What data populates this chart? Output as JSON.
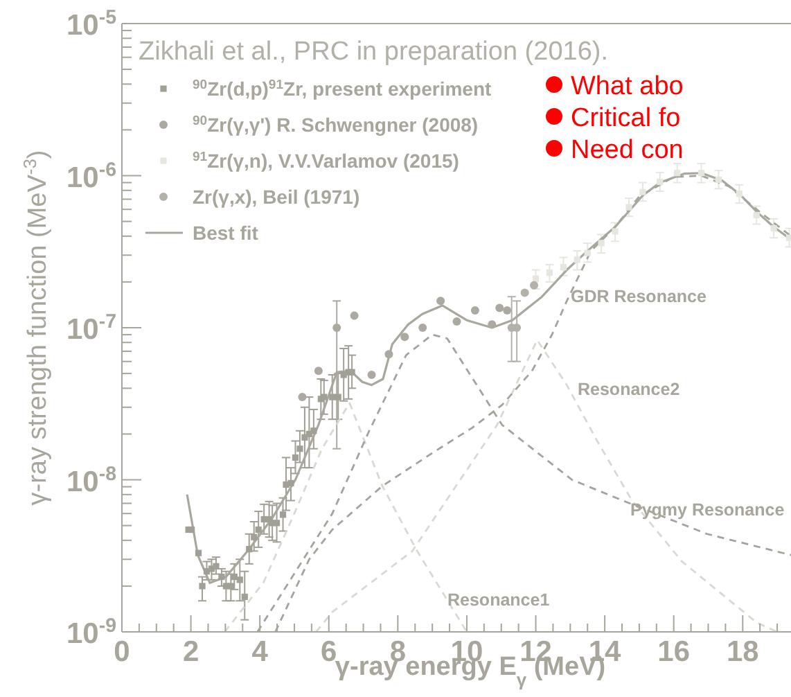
{
  "chart_data": {
    "type": "scatter",
    "xlabel": "γ-ray energy E$_{γ}$ (MeV)",
    "ylabel": "γ-ray strength function (MeV$^{-3}$)",
    "annotations": [
      "Zikhali et al., PRC in preparation (2016).",
      "What abo",
      "Critical fo",
      "Need con"
    ],
    "log": true,
    "legend": "top left",
    "xlim": [
      0,
      19.4
    ],
    "xticks": [
      0,
      {
        "value": 0.5,
        "label": null
      },
      {
        "value": 1,
        "label": null
      },
      {
        "value": 1.5,
        "label": null
      },
      2,
      {
        "value": 2.5,
        "label": null
      },
      {
        "value": 3,
        "label": null
      },
      {
        "value": 3.5,
        "label": null
      },
      4,
      {
        "value": 4.5,
        "label": null
      },
      {
        "value": 5,
        "label": null
      },
      {
        "value": 5.5,
        "label": null
      },
      6,
      {
        "value": 6.5,
        "label": null
      },
      {
        "value": 7,
        "label": null
      },
      {
        "value": 7.5,
        "label": null
      },
      8,
      {
        "value": 8.5,
        "label": null
      },
      {
        "value": 9,
        "label": null
      },
      {
        "value": 9.5,
        "label": null
      },
      10,
      {
        "value": 10.5,
        "label": null
      },
      {
        "value": 11,
        "label": null
      },
      {
        "value": 11.5,
        "label": null
      },
      12,
      {
        "value": 12.5,
        "label": null
      },
      {
        "value": 13,
        "label": null
      },
      {
        "value": 13.5,
        "label": null
      },
      14,
      {
        "value": 14.5,
        "label": null
      },
      {
        "value": 15,
        "label": null
      },
      {
        "value": 15.5,
        "label": null
      },
      16,
      {
        "value": 16.5,
        "label": null
      },
      {
        "value": 17,
        "label": null
      },
      {
        "value": 17.5,
        "label": null
      },
      18,
      {
        "value": 18.5,
        "label": null
      },
      {
        "value": 19,
        "label": null
      }
    ],
    "ylim": [
      1e-09,
      1e-05
    ],
    "yticks": [
      {
        "value": 1e-09,
        "label": "10$^{-9}$"
      },
      {
        "value": 2e-09,
        "label": null
      },
      {
        "value": 3e-09,
        "label": null
      },
      {
        "value": 4e-09,
        "label": null
      },
      {
        "value": 5e-09,
        "label": null
      },
      {
        "value": 6e-09,
        "label": null
      },
      {
        "value": 7e-09,
        "label": null
      },
      {
        "value": 8e-09,
        "label": null
      },
      {
        "value": 9e-09,
        "label": null
      },
      {
        "value": 1e-08,
        "label": "10$^{-8}$"
      },
      {
        "value": 2e-08,
        "label": null
      },
      {
        "value": 3e-08,
        "label": null
      },
      {
        "value": 4e-08,
        "label": null
      },
      {
        "value": 5e-08,
        "label": null
      },
      {
        "value": 6e-08,
        "label": null
      },
      {
        "value": 7e-08,
        "label": null
      },
      {
        "value": 8e-08,
        "label": null
      },
      {
        "value": 9e-08,
        "label": null
      },
      {
        "value": 1e-07,
        "label": "10$^{-7}$"
      },
      {
        "value": 2e-07,
        "label": null
      },
      {
        "value": 3e-07,
        "label": null
      },
      {
        "value": 4e-07,
        "label": null
      },
      {
        "value": 5e-07,
        "label": null
      },
      {
        "value": 6e-07,
        "label": null
      },
      {
        "value": 7e-07,
        "label": null
      },
      {
        "value": 8e-07,
        "label": null
      },
      {
        "value": 9e-07,
        "label": null
      },
      {
        "value": 1e-06,
        "label": "10$^{-6}$"
      },
      {
        "value": 2e-06,
        "label": null
      },
      {
        "value": 3e-06,
        "label": null
      },
      {
        "value": 4e-06,
        "label": null
      },
      {
        "value": 5e-06,
        "label": null
      },
      {
        "value": 6e-06,
        "label": null
      },
      {
        "value": 7e-06,
        "label": null
      },
      {
        "value": 8e-06,
        "label": null
      },
      {
        "value": 9e-06,
        "label": null
      },
      {
        "value": 1e-05,
        "label": "10$^{-5}$"
      }
    ],
    "series": [
      {
        "name": "$^{90}$Zr(d,p)$^{91}$Zr, present experiment",
        "marker": "square",
        "color": "#a19f96",
        "x": [
          1.93,
          2.02,
          2.22,
          2.33,
          2.46,
          2.6,
          2.73,
          2.89,
          3.02,
          3.16,
          3.26,
          3.42,
          3.56,
          3.69,
          3.83,
          3.96,
          4.12,
          4.27,
          4.36,
          4.49,
          4.67,
          4.76,
          4.9,
          5.03,
          5.16,
          5.3,
          5.43,
          5.56,
          5.77,
          5.86,
          6.1,
          6.27,
          6.43,
          6.57,
          6.67
        ],
        "values": [
          4.7e-09,
          4.7e-09,
          3.3e-09,
          2e-09,
          2.5e-09,
          2.6e-09,
          2.7e-09,
          2.3e-09,
          2e-09,
          2e-09,
          2.3e-09,
          2.2e-09,
          1.7e-09,
          3.5e-09,
          4.2e-09,
          4.7e-09,
          5.5e-09,
          5.5e-09,
          5.2e-09,
          5.2e-09,
          5.9e-09,
          9.3e-09,
          9.5e-09,
          1.4e-08,
          1.6e-08,
          1.9e-08,
          2e-08,
          2.1e-08,
          3.4e-08,
          3.5e-08,
          3.5e-08,
          3.5e-08,
          4.9e-08,
          5.1e-08,
          5.1e-08
        ],
        "errors": [
          null,
          null,
          null,
          [
            1.6e-09,
            2.3e-09
          ],
          [
            2.2e-09,
            2.9e-09
          ],
          [
            2.2e-09,
            3e-09
          ],
          [
            2.4e-09,
            3.1e-09
          ],
          [
            2e-09,
            2.6e-09
          ],
          [
            1.6e-09,
            2.5e-09
          ],
          [
            1.6e-09,
            2.4e-09
          ],
          [
            1.9e-09,
            2.8e-09
          ],
          [
            1.6e-09,
            3e-09
          ],
          [
            1.2e-09,
            2.5e-09
          ],
          [
            2.8e-09,
            4.4e-09
          ],
          [
            3.4e-09,
            5.3e-09
          ],
          [
            3.6e-09,
            6.2e-09
          ],
          [
            4.4e-09,
            6.9e-09
          ],
          [
            4.2e-09,
            7.2e-09
          ],
          [
            4e-09,
            6.8e-09
          ],
          [
            3.9e-09,
            7e-09
          ],
          [
            4.6e-09,
            7.6e-09
          ],
          [
            6.3e-09,
            1.4e-08
          ],
          [
            7.3e-09,
            1.2e-08
          ],
          [
            1.1e-08,
            1.8e-08
          ],
          [
            1.3e-08,
            2.1e-08
          ],
          [
            1.2e-08,
            3e-08
          ],
          [
            1.2e-08,
            3.5e-08
          ],
          [
            1.6e-08,
            2.9e-08
          ],
          [
            2.5e-08,
            4.6e-08
          ],
          [
            2.7e-08,
            4.5e-08
          ],
          [
            2.5e-08,
            4.9e-08
          ],
          [
            2.5e-08,
            5e-08
          ],
          [
            3.3e-08,
            7.3e-08
          ],
          [
            3.4e-08,
            7.6e-08
          ],
          [
            4e-08,
            6.6e-08
          ]
        ]
      },
      {
        "name": "$^{90}$Zr(γ,γ') R. Schwengner (2008)",
        "marker": "circle",
        "color": "#aba9a1",
        "x": [
          5.23,
          5.7,
          6.23,
          6.74,
          7.24,
          7.74,
          8.2,
          8.72,
          9.24,
          9.71,
          10.24,
          10.73,
          10.95,
          11.17
        ],
        "values": [
          3.5e-08,
          5.2e-08,
          1e-07,
          1.2e-07,
          4.9e-08,
          6.7e-08,
          8.7e-08,
          1e-07,
          1.5e-07,
          1.1e-07,
          1.3e-07,
          1.05e-07,
          1.35e-07,
          1.3e-07
        ],
        "errors": [
          null,
          null,
          [
            1.6e-08,
            1.5e-07
          ],
          null,
          null,
          null,
          null,
          null,
          null,
          null,
          null,
          null,
          null,
          null
        ]
      },
      {
        "name": "$^{91}$Zr(γ,n), V.V.Varlamov (2015)",
        "marker": "square",
        "color": "#e6e6e1",
        "x": [
          12.0,
          12.4,
          12.8,
          13.2,
          13.5,
          13.9,
          14.3,
          14.7,
          15.1,
          15.6,
          16.1,
          16.8,
          17.3,
          17.9,
          18.4,
          18.9,
          19.35
        ],
        "values": [
          2.1e-07,
          2.3e-07,
          2.5e-07,
          2.8e-07,
          3.1e-07,
          3.6e-07,
          4.3e-07,
          6.2e-07,
          7.8e-07,
          9.1e-07,
          1.04e-06,
          1.04e-06,
          9.4e-07,
          7.6e-07,
          5.5e-07,
          4.5e-07,
          3.9e-07
        ],
        "errors": [
          [
            1.8e-07,
            2.4e-07
          ],
          [
            2e-07,
            2.6e-07
          ],
          [
            2.2e-07,
            2.9e-07
          ],
          [
            2.4e-07,
            3.2e-07
          ],
          [
            2.7e-07,
            3.6e-07
          ],
          [
            3.1e-07,
            4.1e-07
          ],
          [
            3.7e-07,
            4.9e-07
          ],
          [
            5.4e-07,
            7.1e-07
          ],
          [
            6.8e-07,
            9e-07
          ],
          [
            7.9e-07,
            1.05e-06
          ],
          [
            9e-07,
            1.2e-06
          ],
          [
            9e-07,
            1.2e-06
          ],
          [
            8.2e-07,
            1.08e-06
          ],
          [
            6.6e-07,
            8.7e-07
          ],
          [
            4.8e-07,
            6.3e-07
          ],
          [
            3.9e-07,
            5.2e-07
          ],
          [
            3.4e-07,
            4.5e-07
          ]
        ]
      },
      {
        "name": "Zr(γ,x), Beil (1971)",
        "marker": "circle",
        "color": "#b3b1a9",
        "x": [
          11.3,
          11.45,
          11.68,
          11.95
        ],
        "values": [
          1e-07,
          1e-07,
          1.7e-07,
          1.9e-07
        ],
        "errors": [
          [
            6e-08,
            1.6e-07
          ],
          [
            6e-08,
            1.5e-07
          ],
          null,
          null
        ]
      },
      {
        "name": "Best fit",
        "type": "line",
        "line_style": "solid",
        "color": "#aaa79f",
        "x": [
          1.89,
          2.2,
          2.55,
          3.02,
          3.69,
          4.36,
          5.03,
          5.7,
          6.23,
          6.63,
          6.97,
          7.24,
          7.57,
          7.84,
          8.3,
          8.71,
          9.29,
          10.0,
          10.73,
          11.32,
          12.18,
          12.9,
          13.5,
          14.3,
          15.1,
          15.6,
          16.3,
          16.8,
          17.4,
          17.9,
          18.4,
          18.9,
          19.4
        ],
        "values": [
          8e-09,
          3.2e-09,
          2.1e-09,
          2.3e-09,
          3.5e-09,
          5.6e-09,
          1e-08,
          2.3e-08,
          5.1e-08,
          5.2e-08,
          4.4e-08,
          4.2e-08,
          4.6e-08,
          7.8e-08,
          1.05e-07,
          1.23e-07,
          1.4e-07,
          1.12e-07,
          1e-07,
          1.12e-07,
          1.6e-07,
          2.4e-07,
          3.2e-07,
          4.6e-07,
          7.4e-07,
          9e-07,
          1.03e-06,
          1.04e-06,
          9.3e-07,
          7.6e-07,
          5.8e-07,
          4.6e-07,
          3.8e-07
        ]
      },
      {
        "name": "Resonance1",
        "type": "line",
        "line_style": "dashed",
        "color": "#d9d9d3",
        "x": [
          2.98,
          4.1,
          5.0,
          5.8,
          6.6,
          7.55,
          8.56,
          10.0
        ],
        "values": [
          1e-09,
          2.1e-09,
          6e-09,
          1.6e-08,
          3.2e-08,
          9.1e-09,
          3.4e-09,
          1e-09
        ]
      },
      {
        "name": "Resonance2",
        "type": "line",
        "line_style": "dashed",
        "color": "#d9d9d3",
        "x": [
          5.63,
          6.1,
          8.42,
          10.88,
          12.04,
          12.9,
          13.78,
          14.79,
          16.24,
          18.41,
          19.0
        ],
        "values": [
          1e-09,
          1.35e-09,
          3.4e-09,
          2.3e-08,
          8.3e-08,
          4.2e-08,
          1.8e-08,
          7.3e-09,
          2.9e-09,
          1.15e-09,
          1e-09
        ]
      },
      {
        "name": "Pygmy Resonance",
        "type": "line",
        "line_style": "dashed",
        "color": "#a5a39b",
        "x": [
          3.93,
          6.1,
          7.17,
          8.24,
          9.0,
          9.43,
          11.02,
          13.05,
          14.79,
          16.97,
          19.4
        ],
        "values": [
          1e-09,
          6e-09,
          2.1e-08,
          6.6e-08,
          9e-08,
          8.5e-08,
          2.3e-08,
          1e-08,
          6.9e-09,
          4.4e-09,
          3.2e-09
        ]
      },
      {
        "name": "GDR Resonance",
        "type": "line",
        "line_style": "dashed",
        "color": "#a5a39b",
        "x": [
          4.45,
          5.43,
          6.1,
          7.55,
          9.0,
          10.16,
          11.02,
          11.89,
          12.47,
          12.9,
          13.6,
          14.3,
          15.0,
          16.0,
          16.8,
          17.6,
          18.4,
          19.4
        ],
        "values": [
          1e-09,
          3e-09,
          4.7e-09,
          9.1e-09,
          1.5e-08,
          2.2e-08,
          3.1e-08,
          5.2e-08,
          9e-08,
          1.5e-07,
          3.2e-07,
          4.6e-07,
          7.3e-07,
          9.8e-07,
          1e-06,
          8.5e-07,
          6e-07,
          4e-07
        ]
      }
    ]
  }
}
